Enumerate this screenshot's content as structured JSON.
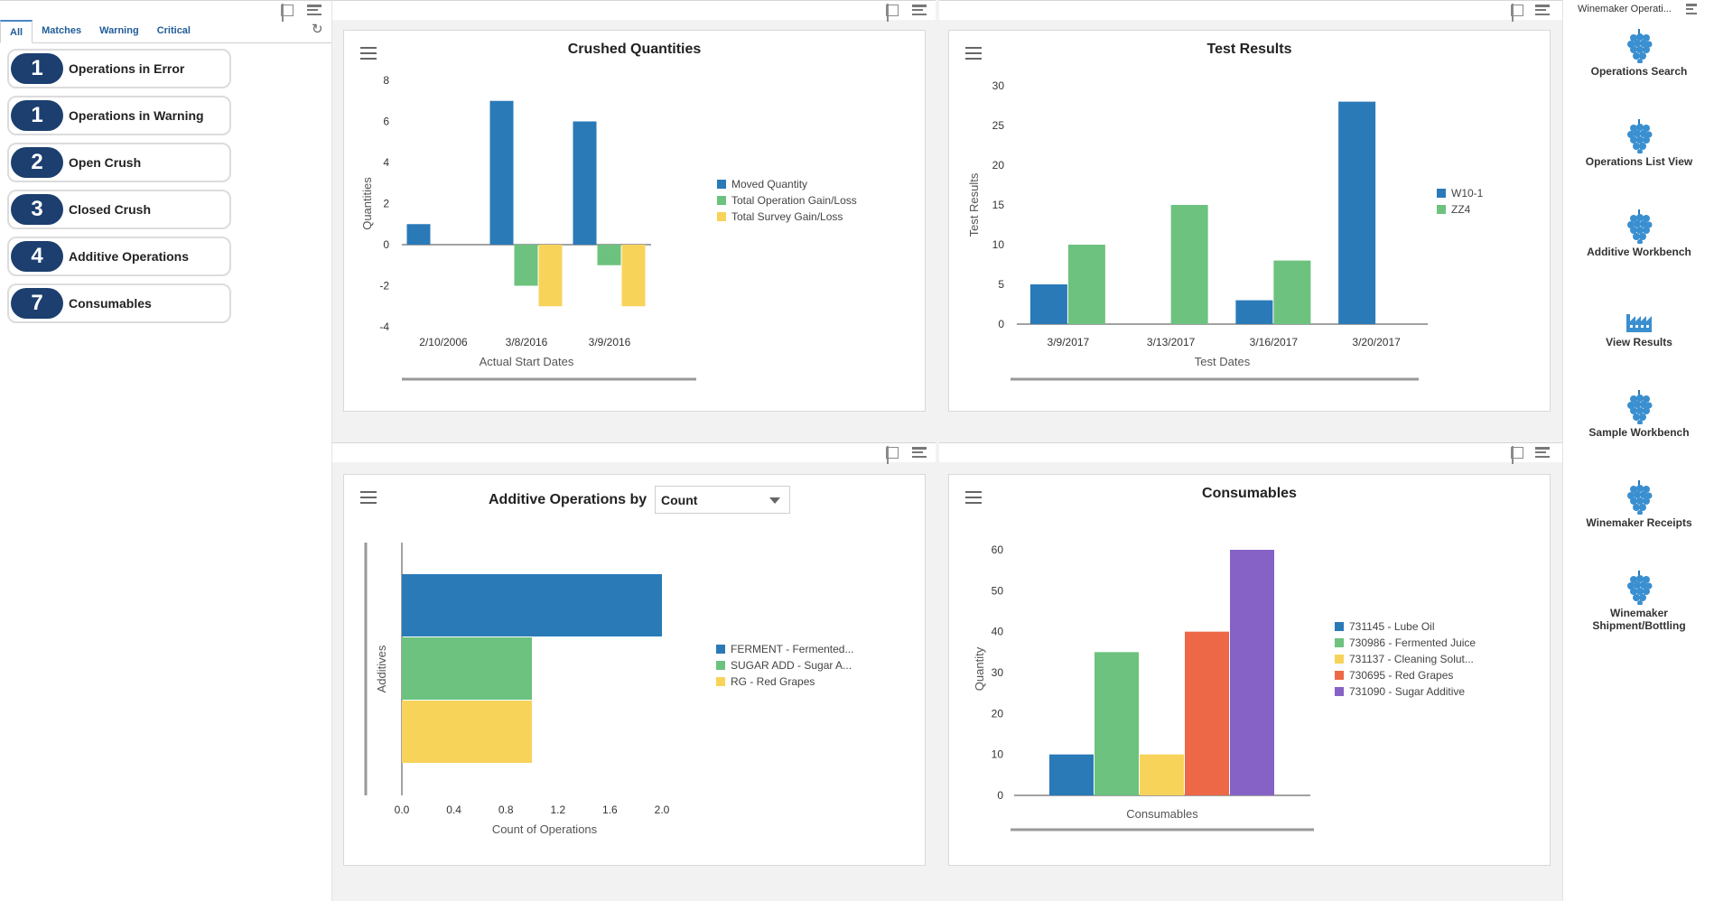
{
  "watchlist": {
    "tabs": [
      "All",
      "Matches",
      "Warning",
      "Critical"
    ],
    "items": [
      {
        "count": "1",
        "label": "Operations in Error"
      },
      {
        "count": "1",
        "label": "Operations in Warning"
      },
      {
        "count": "2",
        "label": "Open Crush"
      },
      {
        "count": "3",
        "label": "Closed Crush"
      },
      {
        "count": "4",
        "label": "Additive Operations"
      },
      {
        "count": "7",
        "label": "Consumables"
      }
    ]
  },
  "springboard": {
    "title": "Winemaker Operati...",
    "items": [
      {
        "icon": "grapes-icon",
        "label": "Operations Search"
      },
      {
        "icon": "grapes-icon",
        "label": "Operations List View"
      },
      {
        "icon": "grapes-icon",
        "label": "Additive Workbench"
      },
      {
        "icon": "factory-icon",
        "label": "View Results"
      },
      {
        "icon": "grapes-icon",
        "label": "Sample Workbench"
      },
      {
        "icon": "grapes-icon",
        "label": "Winemaker Receipts"
      },
      {
        "icon": "grapes-icon",
        "label": "Winemaker Shipment/Bottling"
      }
    ]
  },
  "colors": {
    "blue": "#2a7ab8",
    "green": "#6cc27e",
    "yellow": "#f8d35a",
    "orange": "#ec6847",
    "purple": "#8662c7",
    "navy": "#1c3f6f"
  },
  "chart_data": [
    {
      "id": "crushed",
      "type": "bar",
      "title": "Crushed Quantities",
      "xlabel": "Actual Start Dates",
      "ylabel": "Quantities",
      "categories": [
        "2/10/2006",
        "3/8/2016",
        "3/9/2016"
      ],
      "ylim": [
        -4,
        8
      ],
      "yticks": [
        -4,
        -2,
        0,
        2,
        4,
        6,
        8
      ],
      "series": [
        {
          "name": "Moved Quantity",
          "values": [
            1,
            7,
            6
          ]
        },
        {
          "name": "Total Operation Gain/Loss",
          "values": [
            0,
            -2,
            -1
          ]
        },
        {
          "name": "Total Survey Gain/Loss",
          "values": [
            0,
            -3,
            -3
          ]
        }
      ]
    },
    {
      "id": "test",
      "type": "bar",
      "title": "Test Results",
      "xlabel": "Test Dates",
      "ylabel": "Test Results",
      "categories": [
        "3/9/2017",
        "3/13/2017",
        "3/16/2017",
        "3/20/2017"
      ],
      "ylim": [
        0,
        30
      ],
      "yticks": [
        0,
        5,
        10,
        15,
        20,
        25,
        30
      ],
      "series": [
        {
          "name": "W10-1",
          "values": [
            5,
            0,
            3,
            28
          ]
        },
        {
          "name": "ZZ4",
          "values": [
            10,
            15,
            8,
            0
          ]
        }
      ]
    },
    {
      "id": "additive",
      "type": "bar",
      "orientation": "horizontal",
      "title": "Additive Operations by",
      "selector": "Count",
      "xlabel": "Count of Operations",
      "ylabel": "Additives",
      "xlim": [
        0,
        2.0
      ],
      "xticks": [
        "0.0",
        "0.4",
        "0.8",
        "1.2",
        "1.6",
        "2.0"
      ],
      "series": [
        {
          "name": "FERMENT - Fermented...",
          "values": [
            2
          ]
        },
        {
          "name": "SUGAR ADD - Sugar A...",
          "values": [
            1
          ]
        },
        {
          "name": "RG - Red Grapes",
          "values": [
            1
          ]
        }
      ]
    },
    {
      "id": "consumables",
      "type": "bar",
      "title": "Consumables",
      "xlabel": "Consumables",
      "ylabel": "Quantity",
      "ylim": [
        0,
        60
      ],
      "yticks": [
        0,
        10,
        20,
        30,
        40,
        50,
        60
      ],
      "series": [
        {
          "name": "731145 - Lube Oil",
          "values": [
            10
          ]
        },
        {
          "name": "730986 - Fermented Juice",
          "values": [
            35
          ]
        },
        {
          "name": "731137 - Cleaning Solut...",
          "values": [
            10
          ]
        },
        {
          "name": "730695 - Red Grapes",
          "values": [
            40
          ]
        },
        {
          "name": "731090 - Sugar Additive",
          "values": [
            60
          ]
        }
      ]
    }
  ]
}
